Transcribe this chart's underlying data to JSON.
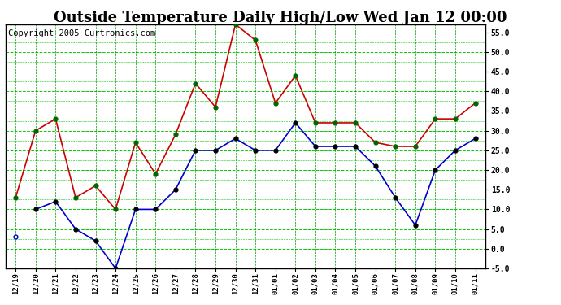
{
  "title": "Outside Temperature Daily High/Low Wed Jan 12 00:00",
  "copyright": "Copyright 2005 Curtronics.com",
  "x_labels": [
    "12/19",
    "12/20",
    "12/21",
    "12/22",
    "12/23",
    "12/24",
    "12/25",
    "12/26",
    "12/27",
    "12/28",
    "12/29",
    "12/30",
    "12/31",
    "01/01",
    "01/02",
    "01/03",
    "01/04",
    "01/05",
    "01/06",
    "01/07",
    "01/08",
    "01/09",
    "01/10",
    "01/11"
  ],
  "high_values": [
    13,
    30,
    33,
    13,
    16,
    10,
    27,
    19,
    29,
    42,
    36,
    57,
    53,
    37,
    44,
    32,
    32,
    32,
    27,
    26,
    26,
    33,
    33,
    37
  ],
  "low_values": [
    3,
    10,
    12,
    5,
    2,
    -5,
    10,
    10,
    15,
    25,
    25,
    28,
    25,
    25,
    32,
    26,
    26,
    26,
    21,
    13,
    6,
    20,
    25,
    28
  ],
  "high_color": "#cc0000",
  "low_color": "#0000cc",
  "marker_color_high": "#006600",
  "marker_color_low": "#000000",
  "background_color": "#ffffff",
  "plot_bg_color": "#ffffff",
  "grid_color_h": "#00cc00",
  "grid_color_v": "#009900",
  "ylim": [
    -5,
    57
  ],
  "ytick_step": 5.0,
  "title_fontsize": 13,
  "copyright_fontsize": 7.5
}
